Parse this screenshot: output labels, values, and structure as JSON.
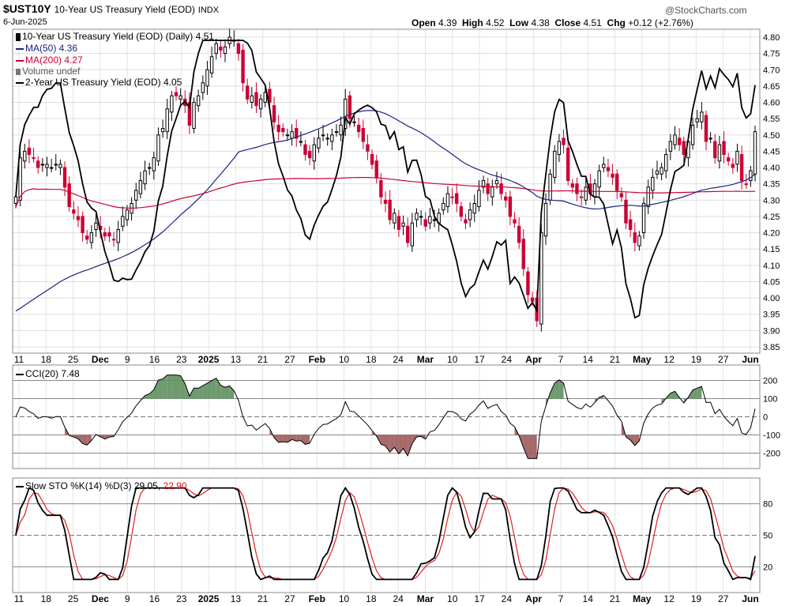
{
  "header": {
    "symbol": "$UST10Y",
    "name": "10-Year US Treasury Yield (EOD)",
    "exchange": "INDX",
    "date": "6-Jun-2025",
    "watermark": "@StockCharts.com",
    "ohlc": [
      {
        "label": "Open",
        "value": "4.39"
      },
      {
        "label": "High",
        "value": "4.52"
      },
      {
        "label": "Low",
        "value": "4.38"
      },
      {
        "label": "Close",
        "value": "4.51"
      },
      {
        "label": "Chg",
        "value": "+0.12 (+2.76%)"
      }
    ]
  },
  "legend": {
    "price": "10-Year US Treasury Yield (EOD) (Daily) 4.51",
    "ma50": "MA(50) 4.36",
    "ma200": "MA(200) 4.27",
    "volume": "Volume undef",
    "overlay": "2-Year US Treasury Yield (EOD) 4.05",
    "cci": "CCI(20) 7.48",
    "sto_prefix": "Slow STO %K(14) %D(3) 29.05,",
    "sto_d": "22.90"
  },
  "colors": {
    "up": "#ffffff",
    "down": "#cc0033",
    "ma50": "#1a237e",
    "ma200": "#cc0033",
    "cci_pos": "#5e8f5e",
    "cci_neg": "#9c5a5a",
    "sto_d": "#e02020"
  },
  "chart_data": [
    {
      "type": "candlestick",
      "title": "10-Year US Treasury Yield (EOD)",
      "yticks": [
        "3.85",
        "3.90",
        "3.95",
        "4.00",
        "4.05",
        "4.10",
        "4.15",
        "4.20",
        "4.25",
        "4.30",
        "4.35",
        "4.40",
        "4.45",
        "4.50",
        "4.55",
        "4.60",
        "4.65",
        "4.70",
        "4.75",
        "4.80"
      ],
      "ylim": [
        3.85,
        4.8
      ],
      "xticks": [
        "11",
        "18",
        "25",
        "Dec",
        "9",
        "16",
        "23",
        "2025",
        "13",
        "21",
        "27",
        "Feb",
        "10",
        "18",
        "24",
        "Mar",
        "10",
        "17",
        "24",
        "Apr",
        "7",
        "14",
        "21",
        "May",
        "12",
        "19",
        "27",
        "Jun"
      ],
      "close": [
        4.31,
        4.43,
        4.45,
        4.44,
        4.43,
        4.4,
        4.41,
        4.41,
        4.4,
        4.41,
        4.41,
        4.34,
        4.28,
        4.26,
        4.24,
        4.2,
        4.18,
        4.2,
        4.23,
        4.21,
        4.19,
        4.19,
        4.18,
        4.21,
        4.25,
        4.27,
        4.29,
        4.33,
        4.36,
        4.39,
        4.4,
        4.43,
        4.5,
        4.52,
        4.58,
        4.62,
        4.62,
        4.62,
        4.59,
        4.53,
        4.6,
        4.62,
        4.66,
        4.7,
        4.74,
        4.78,
        4.76,
        4.77,
        4.8,
        4.79,
        4.75,
        4.66,
        4.61,
        4.62,
        4.59,
        4.61,
        4.63,
        4.6,
        4.54,
        4.51,
        4.51,
        4.5,
        4.51,
        4.49,
        4.48,
        4.44,
        4.43,
        4.47,
        4.49,
        4.5,
        4.49,
        4.5,
        4.51,
        4.53,
        4.61,
        4.55,
        4.54,
        4.51,
        4.48,
        4.45,
        4.41,
        4.37,
        4.31,
        4.29,
        4.24,
        4.26,
        4.21,
        4.23,
        4.17,
        4.23,
        4.26,
        4.25,
        4.22,
        4.25,
        4.24,
        4.26,
        4.29,
        4.32,
        4.31,
        4.29,
        4.25,
        4.23,
        4.27,
        4.29,
        4.33,
        4.36,
        4.32,
        4.34,
        4.36,
        4.32,
        4.3,
        4.25,
        4.23,
        4.17,
        4.09,
        4.01,
        3.99,
        3.93,
        4.2,
        4.29,
        4.38,
        4.45,
        4.48,
        4.47,
        4.36,
        4.34,
        4.32,
        4.31,
        4.34,
        4.32,
        4.35,
        4.39,
        4.41,
        4.39,
        4.37,
        4.33,
        4.31,
        4.23,
        4.21,
        4.17,
        4.19,
        4.29,
        4.34,
        4.37,
        4.39,
        4.4,
        4.44,
        4.48,
        4.5,
        4.47,
        4.44,
        4.48,
        4.53,
        4.55,
        4.57,
        4.48,
        4.49,
        4.43,
        4.47,
        4.44,
        4.42,
        4.4,
        4.45,
        4.36,
        4.35,
        4.39,
        4.51
      ]
    },
    {
      "type": "line",
      "title": "CCI(20)",
      "yticks": [
        "200",
        "100",
        "0",
        "-100",
        "-200"
      ],
      "ylim": [
        -250,
        250
      ]
    },
    {
      "type": "line",
      "title": "Slow STO %K(14) %D(3)",
      "yticks": [
        "80",
        "50",
        "20"
      ],
      "ylim": [
        0,
        100
      ]
    }
  ]
}
